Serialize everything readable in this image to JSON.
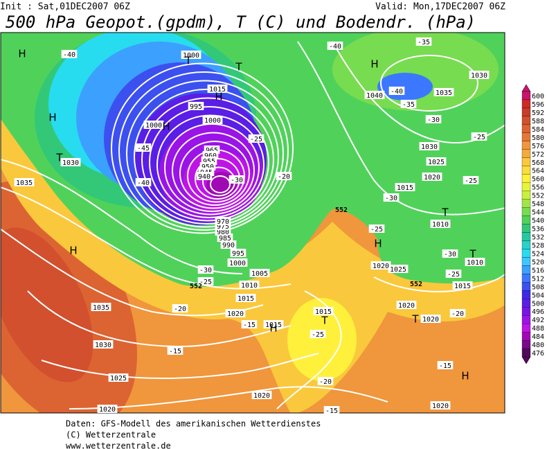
{
  "header": {
    "init": "Init : Sat,01DEC2007 06Z",
    "valid": "Valid: Mon,17DEC2007 06Z",
    "title": "500 hPa Geopot.(gpdm), T (C) und Bodendr. (hPa)"
  },
  "map": {
    "pressure_labels": [
      1000,
      1015,
      995,
      1000,
      1000,
      1030,
      1035,
      1035,
      1030,
      1025,
      1020,
      1020,
      1020,
      1015,
      1010,
      1005,
      1000,
      995,
      990,
      985,
      980,
      975,
      970,
      965,
      960,
      955,
      950,
      945,
      940,
      1015,
      1015,
      1020,
      1020,
      1015,
      1010,
      1010,
      1015,
      1020,
      1025,
      1030,
      1035,
      1040,
      1030,
      1020,
      1025,
      1020
    ],
    "temperature_labels": [
      -40,
      -45,
      -40,
      -30,
      -25,
      -20,
      -30,
      -25,
      -20,
      -15,
      -15,
      -25,
      -20,
      -15,
      -15,
      -20,
      -25,
      -30,
      -25,
      -30,
      -25,
      -25,
      -30,
      -35,
      -40,
      -35,
      -40
    ],
    "height_labels": [
      552,
      552,
      552
    ],
    "centers": [
      "H",
      "H",
      "H",
      "H",
      "T",
      "T",
      "H",
      "H",
      "T",
      "T",
      "T",
      "H",
      "T",
      "H",
      "H",
      "T"
    ]
  },
  "colorbar": {
    "levels": [
      600,
      596,
      592,
      588,
      584,
      580,
      576,
      572,
      568,
      564,
      560,
      556,
      552,
      548,
      544,
      540,
      536,
      532,
      528,
      524,
      520,
      516,
      512,
      508,
      504,
      500,
      496,
      492,
      488,
      484,
      480,
      476
    ],
    "colors": [
      "#c8146e",
      "#d22828",
      "#c83c28",
      "#d2502d",
      "#dc6432",
      "#e67837",
      "#f0963c",
      "#f5aa3c",
      "#fac83c",
      "#fadc3c",
      "#fff03c",
      "#e6f53c",
      "#c8f03c",
      "#a0e646",
      "#78dc50",
      "#50d25a",
      "#32c878",
      "#28c8a0",
      "#28d2c8",
      "#28dcf0",
      "#3cc8ff",
      "#3ca0ff",
      "#3c78ff",
      "#3c50f0",
      "#3c28e6",
      "#5a1ee6",
      "#7814e6",
      "#9b14e6",
      "#be14e6",
      "#a00ab4",
      "#780a8c",
      "#500a5a"
    ]
  },
  "footer": [
    "Daten: GFS-Modell des amerikanischen Wetterdienstes",
    "(C) Wetterzentrale",
    "www.wetterzentrale.de"
  ]
}
